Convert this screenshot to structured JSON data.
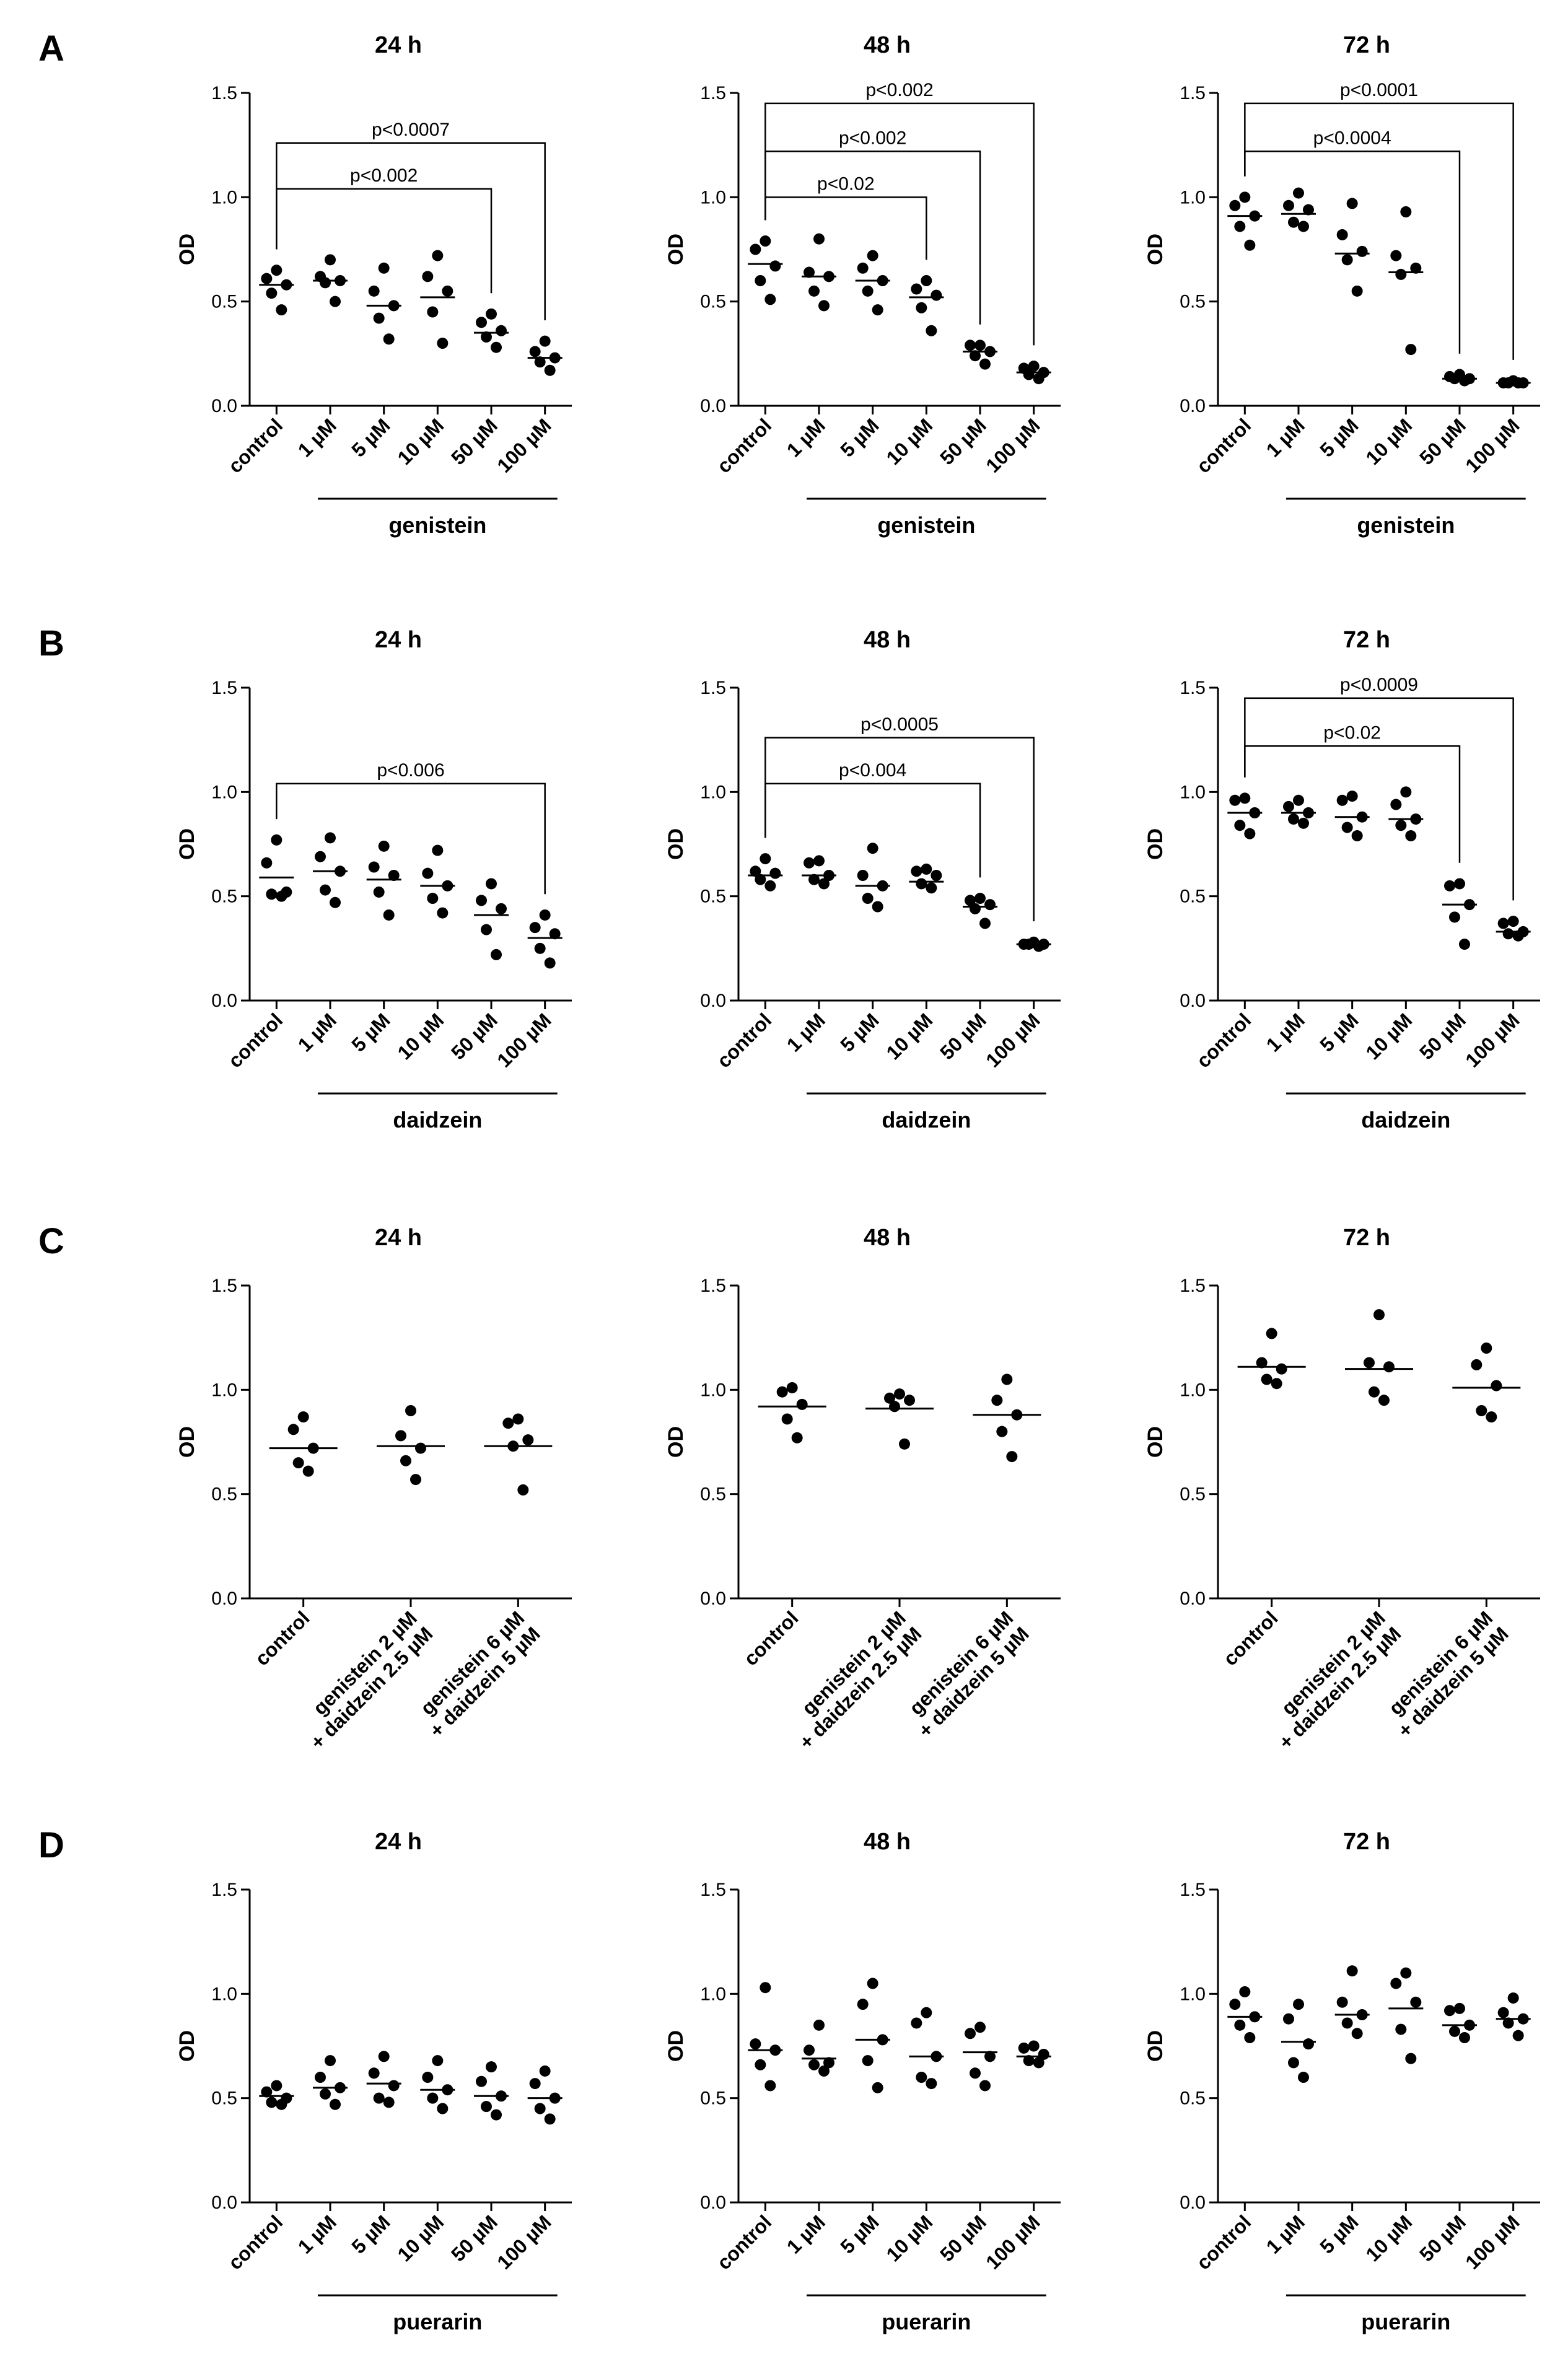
{
  "panels": [
    {
      "letter": "A",
      "group_label": "genistein",
      "charts": [
        {
          "type": "scatter",
          "title": "24 h",
          "ylabel": "OD",
          "ylim": [
            0,
            1.5
          ],
          "yticks": [
            "0.0",
            "0.5",
            "1.0",
            "1.5"
          ],
          "categories": [
            "control",
            "1 µM",
            "5 µM",
            "10 µM",
            "50 µM",
            "100 µM"
          ],
          "points": [
            [
              0.65,
              0.61,
              0.58,
              0.54,
              0.46
            ],
            [
              0.7,
              0.62,
              0.6,
              0.59,
              0.5
            ],
            [
              0.66,
              0.55,
              0.48,
              0.42,
              0.32
            ],
            [
              0.72,
              0.62,
              0.55,
              0.45,
              0.3
            ],
            [
              0.44,
              0.4,
              0.36,
              0.33,
              0.28
            ],
            [
              0.31,
              0.26,
              0.23,
              0.21,
              0.17
            ]
          ],
          "medians": [
            0.58,
            0.6,
            0.48,
            0.52,
            0.35,
            0.23
          ],
          "comparisons": [
            {
              "from": 0,
              "to": 5,
              "y": 1.26,
              "label": "p<0.0007"
            },
            {
              "from": 0,
              "to": 4,
              "y": 1.04,
              "label": "p<0.002"
            }
          ]
        },
        {
          "type": "scatter",
          "title": "48 h",
          "ylabel": "OD",
          "ylim": [
            0,
            1.5
          ],
          "yticks": [
            "0.0",
            "0.5",
            "1.0",
            "1.5"
          ],
          "categories": [
            "control",
            "1 µM",
            "5 µM",
            "10 µM",
            "50 µM",
            "100 µM"
          ],
          "points": [
            [
              0.79,
              0.75,
              0.67,
              0.6,
              0.51
            ],
            [
              0.8,
              0.64,
              0.62,
              0.55,
              0.48
            ],
            [
              0.72,
              0.66,
              0.6,
              0.55,
              0.46
            ],
            [
              0.6,
              0.56,
              0.53,
              0.47,
              0.36
            ],
            [
              0.29,
              0.29,
              0.26,
              0.24,
              0.2
            ],
            [
              0.19,
              0.18,
              0.16,
              0.15,
              0.13
            ]
          ],
          "medians": [
            0.68,
            0.62,
            0.6,
            0.52,
            0.26,
            0.16
          ],
          "comparisons": [
            {
              "from": 0,
              "to": 5,
              "y": 1.45,
              "label": "p<0.002"
            },
            {
              "from": 0,
              "to": 4,
              "y": 1.22,
              "label": "p<0.002"
            },
            {
              "from": 0,
              "to": 3,
              "y": 1.0,
              "label": "p<0.02"
            }
          ]
        },
        {
          "type": "scatter",
          "title": "72 h",
          "ylabel": "OD",
          "ylim": [
            0,
            1.5
          ],
          "yticks": [
            "0.0",
            "0.5",
            "1.0",
            "1.5"
          ],
          "categories": [
            "control",
            "1 µM",
            "5 µM",
            "10 µM",
            "50 µM",
            "100 µM"
          ],
          "points": [
            [
              1.0,
              0.96,
              0.91,
              0.86,
              0.77
            ],
            [
              1.02,
              0.96,
              0.94,
              0.88,
              0.86
            ],
            [
              0.97,
              0.82,
              0.74,
              0.7,
              0.55
            ],
            [
              0.93,
              0.72,
              0.66,
              0.63,
              0.27
            ],
            [
              0.15,
              0.14,
              0.13,
              0.13,
              0.12
            ],
            [
              0.12,
              0.11,
              0.11,
              0.11,
              0.11
            ]
          ],
          "medians": [
            0.91,
            0.92,
            0.73,
            0.64,
            0.13,
            0.11
          ],
          "comparisons": [
            {
              "from": 0,
              "to": 5,
              "y": 1.45,
              "label": "p<0.0001"
            },
            {
              "from": 0,
              "to": 4,
              "y": 1.22,
              "label": "p<0.0004"
            }
          ]
        }
      ]
    },
    {
      "letter": "B",
      "group_label": "daidzein",
      "charts": [
        {
          "type": "scatter",
          "title": "24 h",
          "ylabel": "OD",
          "ylim": [
            0,
            1.5
          ],
          "yticks": [
            "0.0",
            "0.5",
            "1.0",
            "1.5"
          ],
          "categories": [
            "control",
            "1 µM",
            "5 µM",
            "10 µM",
            "50 µM",
            "100 µM"
          ],
          "points": [
            [
              0.77,
              0.66,
              0.52,
              0.51,
              0.5
            ],
            [
              0.78,
              0.69,
              0.62,
              0.53,
              0.47
            ],
            [
              0.74,
              0.64,
              0.6,
              0.52,
              0.41
            ],
            [
              0.72,
              0.61,
              0.55,
              0.49,
              0.42
            ],
            [
              0.56,
              0.48,
              0.44,
              0.34,
              0.22
            ],
            [
              0.41,
              0.35,
              0.32,
              0.25,
              0.18
            ]
          ],
          "medians": [
            0.59,
            0.62,
            0.58,
            0.55,
            0.41,
            0.3
          ],
          "comparisons": [
            {
              "from": 0,
              "to": 5,
              "y": 1.04,
              "label": "p<0.006"
            }
          ]
        },
        {
          "type": "scatter",
          "title": "48 h",
          "ylabel": "OD",
          "ylim": [
            0,
            1.5
          ],
          "yticks": [
            "0.0",
            "0.5",
            "1.0",
            "1.5"
          ],
          "categories": [
            "control",
            "1 µM",
            "5 µM",
            "10 µM",
            "50 µM",
            "100 µM"
          ],
          "points": [
            [
              0.68,
              0.62,
              0.61,
              0.58,
              0.55
            ],
            [
              0.67,
              0.66,
              0.6,
              0.58,
              0.56
            ],
            [
              0.73,
              0.6,
              0.55,
              0.49,
              0.45
            ],
            [
              0.63,
              0.62,
              0.6,
              0.56,
              0.54
            ],
            [
              0.49,
              0.48,
              0.46,
              0.44,
              0.37
            ],
            [
              0.28,
              0.27,
              0.27,
              0.27,
              0.26
            ]
          ],
          "medians": [
            0.6,
            0.6,
            0.55,
            0.57,
            0.45,
            0.27
          ],
          "comparisons": [
            {
              "from": 0,
              "to": 5,
              "y": 1.26,
              "label": "p<0.0005"
            },
            {
              "from": 0,
              "to": 4,
              "y": 1.04,
              "label": "p<0.004"
            }
          ]
        },
        {
          "type": "scatter",
          "title": "72 h",
          "ylabel": "OD",
          "ylim": [
            0,
            1.5
          ],
          "yticks": [
            "0.0",
            "0.5",
            "1.0",
            "1.5"
          ],
          "categories": [
            "control",
            "1 µM",
            "5 µM",
            "10 µM",
            "50 µM",
            "100 µM"
          ],
          "points": [
            [
              0.97,
              0.96,
              0.9,
              0.84,
              0.8
            ],
            [
              0.96,
              0.93,
              0.9,
              0.87,
              0.85
            ],
            [
              0.98,
              0.96,
              0.88,
              0.83,
              0.79
            ],
            [
              1.0,
              0.94,
              0.87,
              0.84,
              0.79
            ],
            [
              0.56,
              0.55,
              0.46,
              0.4,
              0.27
            ],
            [
              0.38,
              0.37,
              0.33,
              0.32,
              0.31
            ]
          ],
          "medians": [
            0.9,
            0.9,
            0.88,
            0.87,
            0.46,
            0.33
          ],
          "comparisons": [
            {
              "from": 0,
              "to": 5,
              "y": 1.45,
              "label": "p<0.0009"
            },
            {
              "from": 0,
              "to": 4,
              "y": 1.22,
              "label": "p<0.02"
            }
          ]
        }
      ]
    },
    {
      "letter": "C",
      "group_label": "",
      "charts": [
        {
          "type": "scatter",
          "title": "24 h",
          "ylabel": "OD",
          "ylim": [
            0,
            1.5
          ],
          "yticks": [
            "0.0",
            "0.5",
            "1.0",
            "1.5"
          ],
          "categories": [
            [
              "control"
            ],
            [
              "genistein 2 µM",
              "+ daidzein 2.5 µM"
            ],
            [
              "genistein 6 µM",
              "+ daidzein 5 µM"
            ]
          ],
          "points": [
            [
              0.87,
              0.81,
              0.72,
              0.65,
              0.61
            ],
            [
              0.9,
              0.78,
              0.72,
              0.66,
              0.57
            ],
            [
              0.86,
              0.84,
              0.76,
              0.73,
              0.52
            ]
          ],
          "medians": [
            0.72,
            0.73,
            0.73
          ],
          "comparisons": []
        },
        {
          "type": "scatter",
          "title": "48 h",
          "ylabel": "OD",
          "ylim": [
            0,
            1.5
          ],
          "yticks": [
            "0.0",
            "0.5",
            "1.0",
            "1.5"
          ],
          "categories": [
            [
              "control"
            ],
            [
              "genistein 2 µM",
              "+ daidzein 2.5 µM"
            ],
            [
              "genistein 6 µM",
              "+ daidzein 5 µM"
            ]
          ],
          "points": [
            [
              1.01,
              0.99,
              0.93,
              0.86,
              0.77
            ],
            [
              0.98,
              0.96,
              0.95,
              0.92,
              0.74
            ],
            [
              1.05,
              0.95,
              0.88,
              0.8,
              0.68
            ]
          ],
          "medians": [
            0.92,
            0.91,
            0.88
          ],
          "comparisons": []
        },
        {
          "type": "scatter",
          "title": "72 h",
          "ylabel": "OD",
          "ylim": [
            0,
            1.5
          ],
          "yticks": [
            "0.0",
            "0.5",
            "1.0",
            "1.5"
          ],
          "categories": [
            [
              "control"
            ],
            [
              "genistein 2 µM",
              "+ daidzein 2.5 µM"
            ],
            [
              "genistein 6 µM",
              "+ daidzein 5 µM"
            ]
          ],
          "points": [
            [
              1.27,
              1.13,
              1.1,
              1.05,
              1.03
            ],
            [
              1.36,
              1.13,
              1.11,
              0.99,
              0.95
            ],
            [
              1.2,
              1.12,
              1.02,
              0.9,
              0.87
            ]
          ],
          "medians": [
            1.11,
            1.1,
            1.01
          ],
          "comparisons": []
        }
      ]
    },
    {
      "letter": "D",
      "group_label": "puerarin",
      "charts": [
        {
          "type": "scatter",
          "title": "24 h",
          "ylabel": "OD",
          "ylim": [
            0,
            1.5
          ],
          "yticks": [
            "0.0",
            "0.5",
            "1.0",
            "1.5"
          ],
          "categories": [
            "control",
            "1 µM",
            "5 µM",
            "10 µM",
            "50 µM",
            "100 µM"
          ],
          "points": [
            [
              0.56,
              0.53,
              0.5,
              0.48,
              0.47
            ],
            [
              0.68,
              0.6,
              0.55,
              0.52,
              0.47
            ],
            [
              0.7,
              0.62,
              0.56,
              0.5,
              0.48
            ],
            [
              0.68,
              0.6,
              0.54,
              0.5,
              0.45
            ],
            [
              0.65,
              0.58,
              0.51,
              0.46,
              0.42
            ],
            [
              0.63,
              0.57,
              0.5,
              0.45,
              0.4
            ]
          ],
          "medians": [
            0.51,
            0.55,
            0.57,
            0.54,
            0.51,
            0.5
          ],
          "comparisons": []
        },
        {
          "type": "scatter",
          "title": "48 h",
          "ylabel": "OD",
          "ylim": [
            0,
            1.5
          ],
          "yticks": [
            "0.0",
            "0.5",
            "1.0",
            "1.5"
          ],
          "categories": [
            "control",
            "1 µM",
            "5 µM",
            "10 µM",
            "50 µM",
            "100 µM"
          ],
          "points": [
            [
              1.03,
              0.76,
              0.73,
              0.66,
              0.56
            ],
            [
              0.85,
              0.73,
              0.67,
              0.66,
              0.63
            ],
            [
              1.05,
              0.95,
              0.78,
              0.68,
              0.55
            ],
            [
              0.91,
              0.86,
              0.7,
              0.6,
              0.57
            ],
            [
              0.84,
              0.81,
              0.7,
              0.62,
              0.56
            ],
            [
              0.75,
              0.74,
              0.71,
              0.68,
              0.67
            ]
          ],
          "medians": [
            0.73,
            0.69,
            0.78,
            0.7,
            0.72,
            0.7
          ],
          "comparisons": []
        },
        {
          "type": "scatter",
          "title": "72 h",
          "ylabel": "OD",
          "ylim": [
            0,
            1.5
          ],
          "yticks": [
            "0.0",
            "0.5",
            "1.0",
            "1.5"
          ],
          "categories": [
            "control",
            "1 µM",
            "5 µM",
            "10 µM",
            "50 µM",
            "100 µM"
          ],
          "points": [
            [
              1.01,
              0.95,
              0.89,
              0.85,
              0.79
            ],
            [
              0.95,
              0.88,
              0.76,
              0.67,
              0.6
            ],
            [
              1.11,
              0.96,
              0.9,
              0.86,
              0.81
            ],
            [
              1.1,
              1.05,
              0.96,
              0.83,
              0.69
            ],
            [
              0.93,
              0.92,
              0.85,
              0.82,
              0.79
            ],
            [
              0.98,
              0.91,
              0.88,
              0.86,
              0.8
            ]
          ],
          "medians": [
            0.89,
            0.77,
            0.9,
            0.93,
            0.85,
            0.88
          ],
          "comparisons": []
        }
      ]
    }
  ]
}
